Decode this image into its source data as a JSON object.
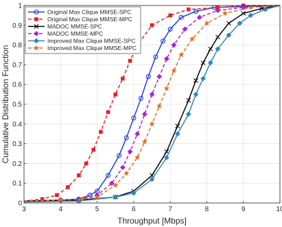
{
  "chart_data": {
    "type": "line",
    "xlabel": "Throughput [Mbps]",
    "ylabel": "Cumulative Distribution Function",
    "xlim": [
      3,
      10
    ],
    "ylim": [
      0,
      1
    ],
    "xticks": [
      "3",
      "4",
      "5",
      "6",
      "7",
      "8",
      "9",
      "10"
    ],
    "yticks": [
      "0",
      "0.1",
      "0.2",
      "0.3",
      "0.4",
      "0.5",
      "0.6",
      "0.7",
      "0.8",
      "0.9",
      "1"
    ],
    "grid": true,
    "legend_position": "top-left",
    "series": [
      {
        "name": "Original Max Clique MMSE-SPC",
        "color": "#1f3fe0",
        "dash": "solid",
        "marker": "circle",
        "x": [
          3.0,
          4.0,
          4.5,
          4.8,
          5.0,
          5.3,
          5.6,
          5.8,
          6.0,
          6.2,
          6.4,
          6.6,
          6.8,
          7.0,
          7.3,
          7.7,
          8.2,
          9.0,
          10.0
        ],
        "y": [
          0.01,
          0.015,
          0.02,
          0.04,
          0.06,
          0.14,
          0.24,
          0.33,
          0.43,
          0.53,
          0.64,
          0.74,
          0.82,
          0.88,
          0.94,
          0.97,
          0.99,
          0.995,
          1.0
        ]
      },
      {
        "name": "Original Max Clique MMSE-MPC",
        "color": "#e8202a",
        "dash": "dash",
        "marker": "square",
        "x": [
          3.0,
          3.5,
          3.9,
          4.2,
          4.5,
          4.7,
          4.9,
          5.1,
          5.3,
          5.5,
          5.7,
          5.9,
          6.1,
          6.5,
          7.0,
          7.5,
          8.3,
          9.0,
          10.0
        ],
        "y": [
          0.01,
          0.02,
          0.04,
          0.08,
          0.14,
          0.2,
          0.27,
          0.36,
          0.46,
          0.55,
          0.63,
          0.72,
          0.8,
          0.9,
          0.95,
          0.98,
          0.99,
          1.0,
          1.0
        ]
      },
      {
        "name": "MADOC MMSE-SPC",
        "color": "#000000",
        "dash": "solid",
        "marker": "x",
        "x": [
          3.0,
          4.5,
          5.5,
          6.0,
          6.5,
          6.9,
          7.2,
          7.5,
          7.7,
          7.9,
          8.1,
          8.3,
          8.6,
          9.0,
          9.5,
          10.0
        ],
        "y": [
          0.01,
          0.015,
          0.03,
          0.06,
          0.14,
          0.26,
          0.39,
          0.52,
          0.62,
          0.71,
          0.78,
          0.84,
          0.91,
          0.96,
          0.985,
          1.0
        ]
      },
      {
        "name": "MADOC MMSE-MPC",
        "color": "#b01fd6",
        "dash": "dash",
        "marker": "diamond",
        "x": [
          3.0,
          4.0,
          4.5,
          5.0,
          5.4,
          5.7,
          5.9,
          6.1,
          6.3,
          6.5,
          6.7,
          6.9,
          7.1,
          7.4,
          7.8,
          8.3,
          9.0,
          10.0
        ],
        "y": [
          0.01,
          0.015,
          0.02,
          0.04,
          0.1,
          0.18,
          0.26,
          0.35,
          0.45,
          0.55,
          0.64,
          0.73,
          0.8,
          0.88,
          0.94,
          0.975,
          0.99,
          1.0
        ]
      },
      {
        "name": "Improved Max Clique MMSE-SPC",
        "color": "#2e86c1",
        "dash": "solid",
        "marker": "diamond",
        "x": [
          3.0,
          4.5,
          5.5,
          6.0,
          6.5,
          6.9,
          7.2,
          7.5,
          7.7,
          7.9,
          8.1,
          8.3,
          8.6,
          8.9,
          9.2,
          9.6,
          10.0
        ],
        "y": [
          0.005,
          0.01,
          0.03,
          0.05,
          0.12,
          0.23,
          0.35,
          0.45,
          0.55,
          0.63,
          0.71,
          0.78,
          0.85,
          0.91,
          0.95,
          0.98,
          1.0
        ]
      },
      {
        "name": "Improved Max Clique MMSE-MPC",
        "color": "#e07020",
        "dash": "dash",
        "marker": "star",
        "x": [
          3.0,
          4.0,
          4.6,
          5.0,
          5.5,
          5.8,
          6.1,
          6.3,
          6.5,
          6.7,
          6.9,
          7.1,
          7.3,
          7.6,
          8.0,
          8.5,
          9.2,
          10.0
        ],
        "y": [
          0.01,
          0.015,
          0.02,
          0.03,
          0.09,
          0.15,
          0.23,
          0.31,
          0.4,
          0.49,
          0.58,
          0.67,
          0.75,
          0.83,
          0.91,
          0.96,
          0.99,
          1.0
        ]
      }
    ]
  }
}
